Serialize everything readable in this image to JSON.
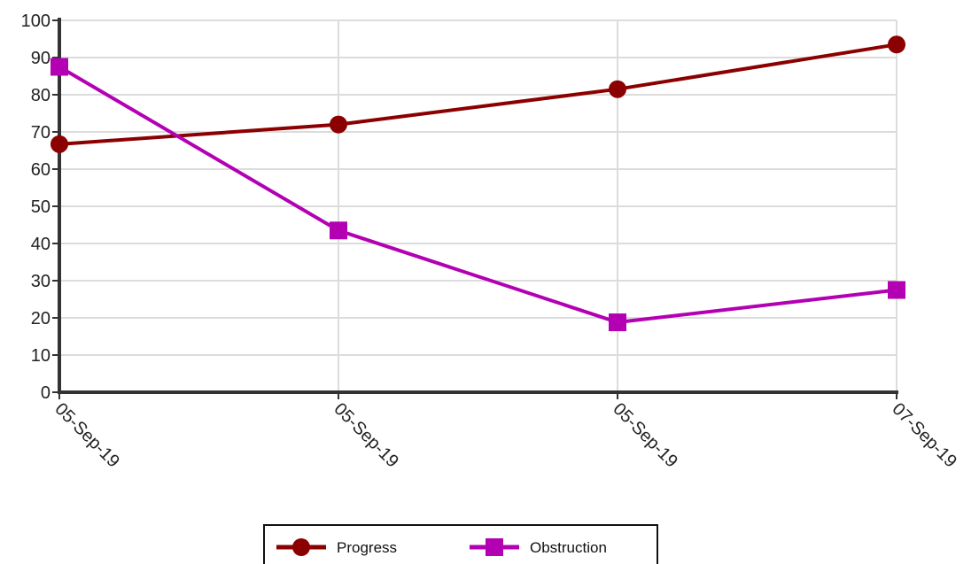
{
  "chart_data": {
    "type": "line",
    "categories": [
      "05-Sep-19",
      "05-Sep-19",
      "05-Sep-19",
      "07-Sep-19"
    ],
    "series": [
      {
        "name": "Progress",
        "values": [
          66.7,
          72.0,
          81.5,
          93.5
        ],
        "color": "#8b0000",
        "marker": "circle"
      },
      {
        "name": "Obstruction",
        "values": [
          87.5,
          43.5,
          18.8,
          27.5
        ],
        "color": "#b300b3",
        "marker": "square"
      }
    ],
    "ylim": [
      0,
      100
    ],
    "yticks": [
      0,
      10,
      20,
      30,
      40,
      50,
      60,
      70,
      80,
      90,
      100
    ],
    "grid": true,
    "legend_position": "bottom-center",
    "xlabel": "",
    "ylabel": ""
  }
}
